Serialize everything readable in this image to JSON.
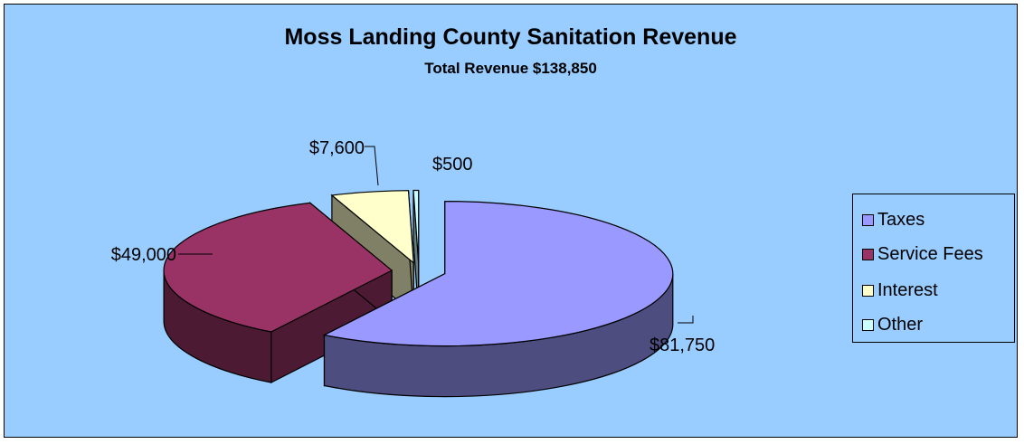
{
  "chart_data": {
    "type": "pie",
    "title": "Moss Landing County Sanitation Revenue",
    "subtitle": "Total Revenue $138,850",
    "categories": [
      "Taxes",
      "Service Fees",
      "Interest",
      "Other"
    ],
    "values": [
      81750,
      49000,
      7600,
      500
    ],
    "data_labels": [
      "$81,750",
      "$49,000",
      "$7,600",
      "$500"
    ],
    "colors": [
      "#9999ff",
      "#993366",
      "#ffffcc",
      "#ccffff"
    ],
    "side_colors": [
      "#4d4d80",
      "#4d1a33",
      "#808066",
      "#668080"
    ],
    "exploded": true,
    "style": "3d",
    "legend_position": "right"
  }
}
